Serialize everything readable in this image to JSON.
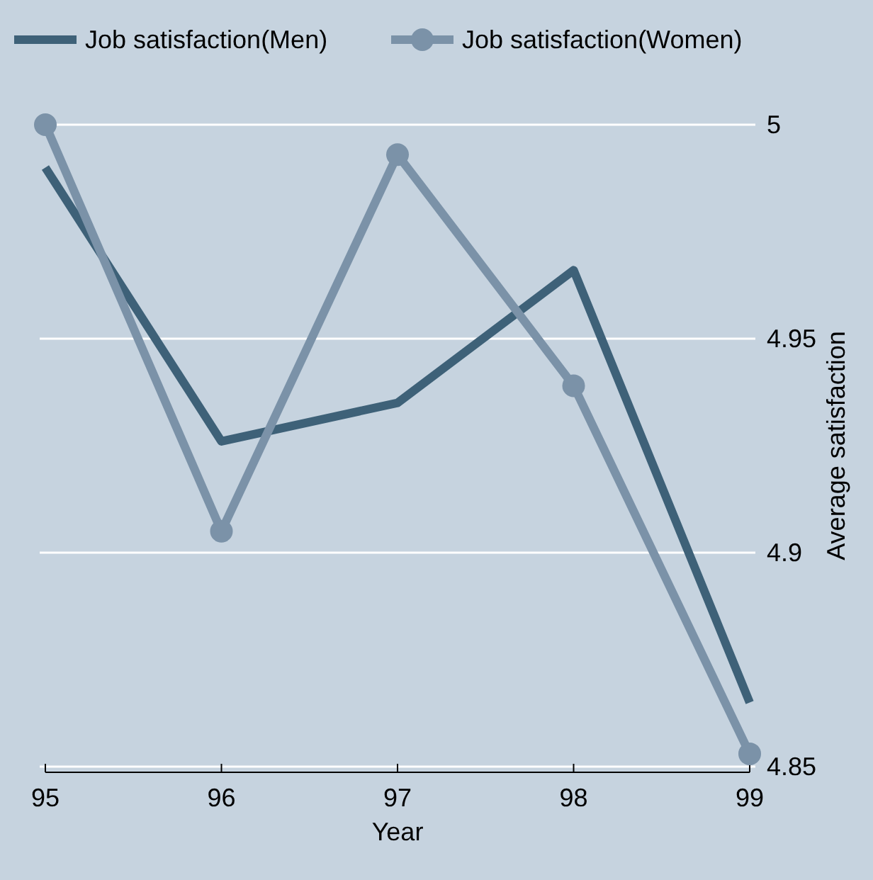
{
  "chart_data": {
    "type": "line",
    "xlabel": "Year",
    "ylabel": "Average satisfaction",
    "x": [
      95,
      96,
      97,
      98,
      99
    ],
    "xlim": [
      95,
      99
    ],
    "xticks": [
      95,
      96,
      97,
      98,
      99
    ],
    "ylim": [
      4.85,
      5
    ],
    "yticks": [
      4.85,
      4.9,
      4.95,
      5
    ],
    "grid": "y",
    "legend": "top",
    "series": [
      {
        "name": "Job satisfaction(Men)",
        "color": "#3e6178",
        "marker": "none",
        "values": [
          4.99,
          4.926,
          4.935,
          4.966,
          4.865
        ]
      },
      {
        "name": "Job satisfaction(Women)",
        "color": "#7b92a8",
        "marker": "circle",
        "values": [
          5.0,
          4.905,
          4.993,
          4.939,
          4.853
        ]
      }
    ]
  }
}
